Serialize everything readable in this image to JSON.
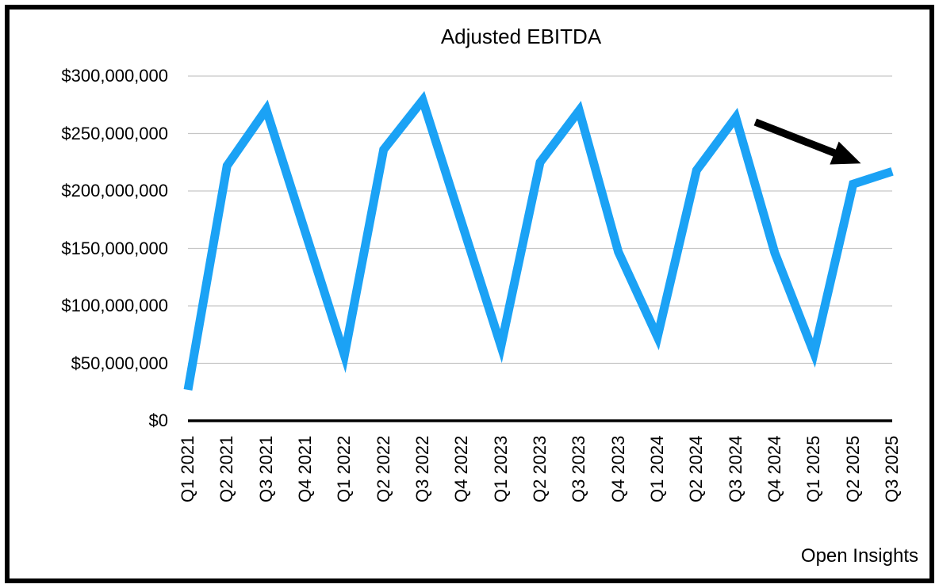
{
  "title": "Adjusted EBITDA",
  "footer": "Open Insights",
  "colors": {
    "line": "#1BA2F5",
    "grid": "#C6C6C6",
    "axis": "#000000",
    "arrow": "#000000",
    "border": "#000000",
    "background": "#FFFFFF",
    "text": "#000000"
  },
  "chart_data": {
    "type": "line",
    "title": "Adjusted EBITDA",
    "categories": [
      "Q1 2021",
      "Q2 2021",
      "Q3 2021",
      "Q4 2021",
      "Q1 2022",
      "Q2 2022",
      "Q3 2022",
      "Q4 2022",
      "Q1 2023",
      "Q2 2023",
      "Q3 2023",
      "Q4 2023",
      "Q1 2024",
      "Q2 2024",
      "Q3 2024",
      "Q4 2024",
      "Q1 2025",
      "Q2 2025",
      "Q3 2025"
    ],
    "series": [
      {
        "name": "Adjusted EBITDA",
        "values": [
          27000000,
          222000000,
          271000000,
          164000000,
          57000000,
          236000000,
          279000000,
          172000000,
          65000000,
          225000000,
          270000000,
          147000000,
          73000000,
          218000000,
          264000000,
          146000000,
          59000000,
          206000000,
          217000000
        ]
      }
    ],
    "xlabel": "",
    "ylabel": "",
    "ylim": [
      0,
      300000000
    ],
    "yticks": [
      0,
      50000000,
      100000000,
      150000000,
      200000000,
      250000000,
      300000000
    ],
    "ytick_labels": [
      "$0",
      "$50,000,000",
      "$100,000,000",
      "$150,000,000",
      "$200,000,000",
      "$250,000,000",
      "$300,000,000"
    ],
    "grid": true,
    "legend": false,
    "x_tick_rotation_deg": 90,
    "annotation": {
      "shape": "arrow",
      "meaning": "points at the latest dip-and-recovery (Q2–Q3 2025)",
      "from": {
        "category_index": 14.5,
        "value": 260000000
      },
      "to": {
        "category_index": 17.2,
        "value": 224000000
      }
    }
  }
}
